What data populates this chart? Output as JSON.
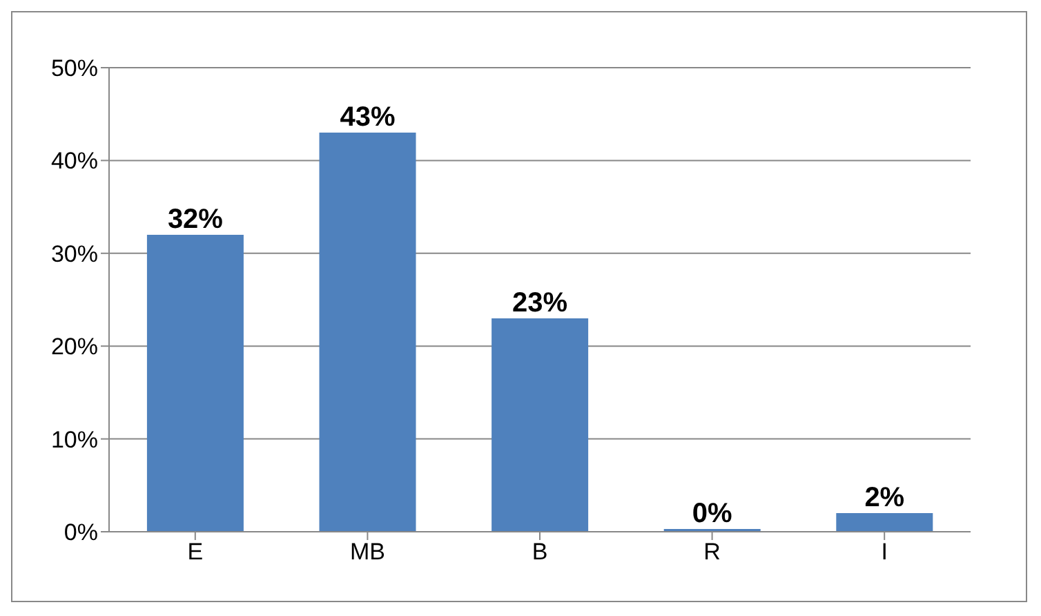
{
  "chart_data": {
    "type": "bar",
    "categories": [
      "E",
      "MB",
      "B",
      "R",
      "I"
    ],
    "values": [
      32,
      43,
      23,
      0,
      2
    ],
    "value_labels": [
      "32%",
      "43%",
      "23%",
      "0%",
      "2%"
    ],
    "color": "#4f81bd",
    "ylim": [
      0,
      50
    ],
    "yticks": [
      {
        "value": 0,
        "label": "0%"
      },
      {
        "value": 10,
        "label": "10%"
      },
      {
        "value": 20,
        "label": "20%"
      },
      {
        "value": 30,
        "label": "30%"
      },
      {
        "value": 40,
        "label": "40%"
      },
      {
        "value": 50,
        "label": "50%"
      }
    ],
    "grid": "y",
    "legend": false
  }
}
